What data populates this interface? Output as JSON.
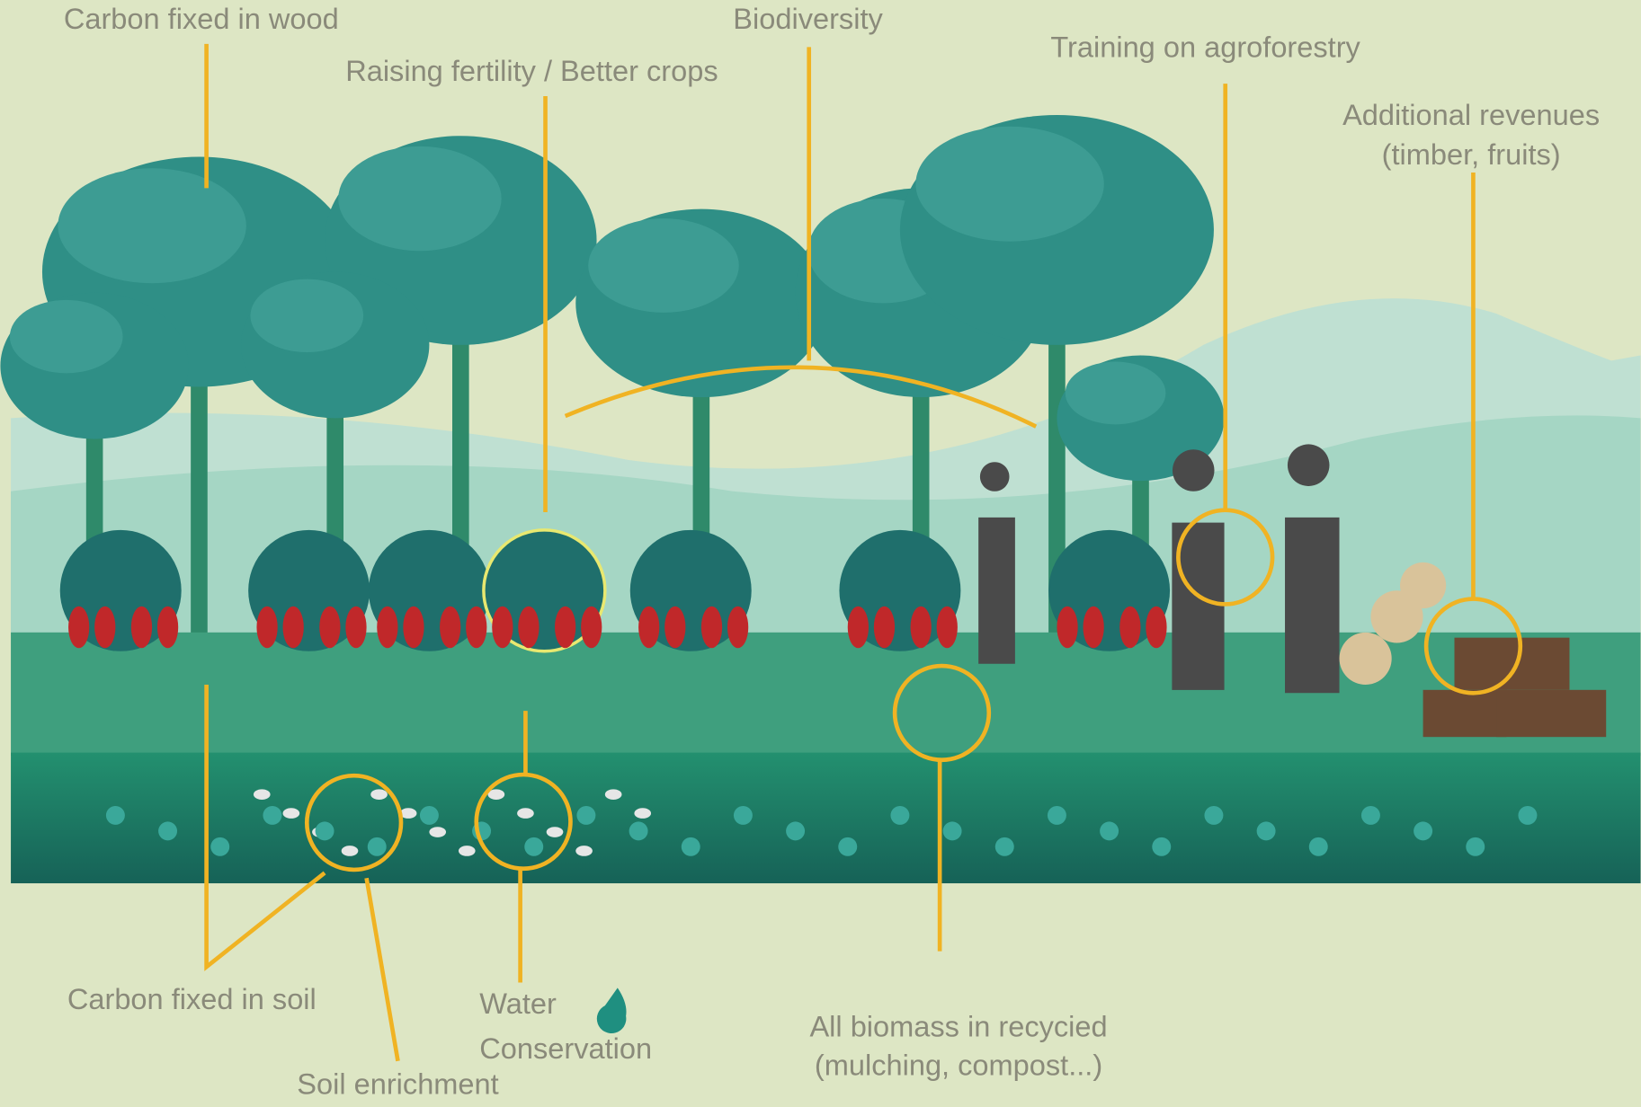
{
  "labels": [
    {
      "lines": [
        "Carbon fixed in wood"
      ]
    },
    {
      "lines": [
        "Biodiversity"
      ]
    },
    {
      "lines": [
        "Raising fertility / Better crops"
      ]
    },
    {
      "lines": [
        "Training on agroforestry"
      ]
    },
    {
      "lines": [
        "Additional revenues",
        "(timber, fruits)"
      ]
    },
    {
      "lines": [
        "Carbon fixed in soil"
      ]
    },
    {
      "lines": [
        "Water",
        "Conservation"
      ]
    },
    {
      "lines": [
        "Soil enrichment"
      ]
    },
    {
      "lines": [
        "All biomass in recycied",
        "(mulching, compost...)"
      ]
    }
  ]
}
